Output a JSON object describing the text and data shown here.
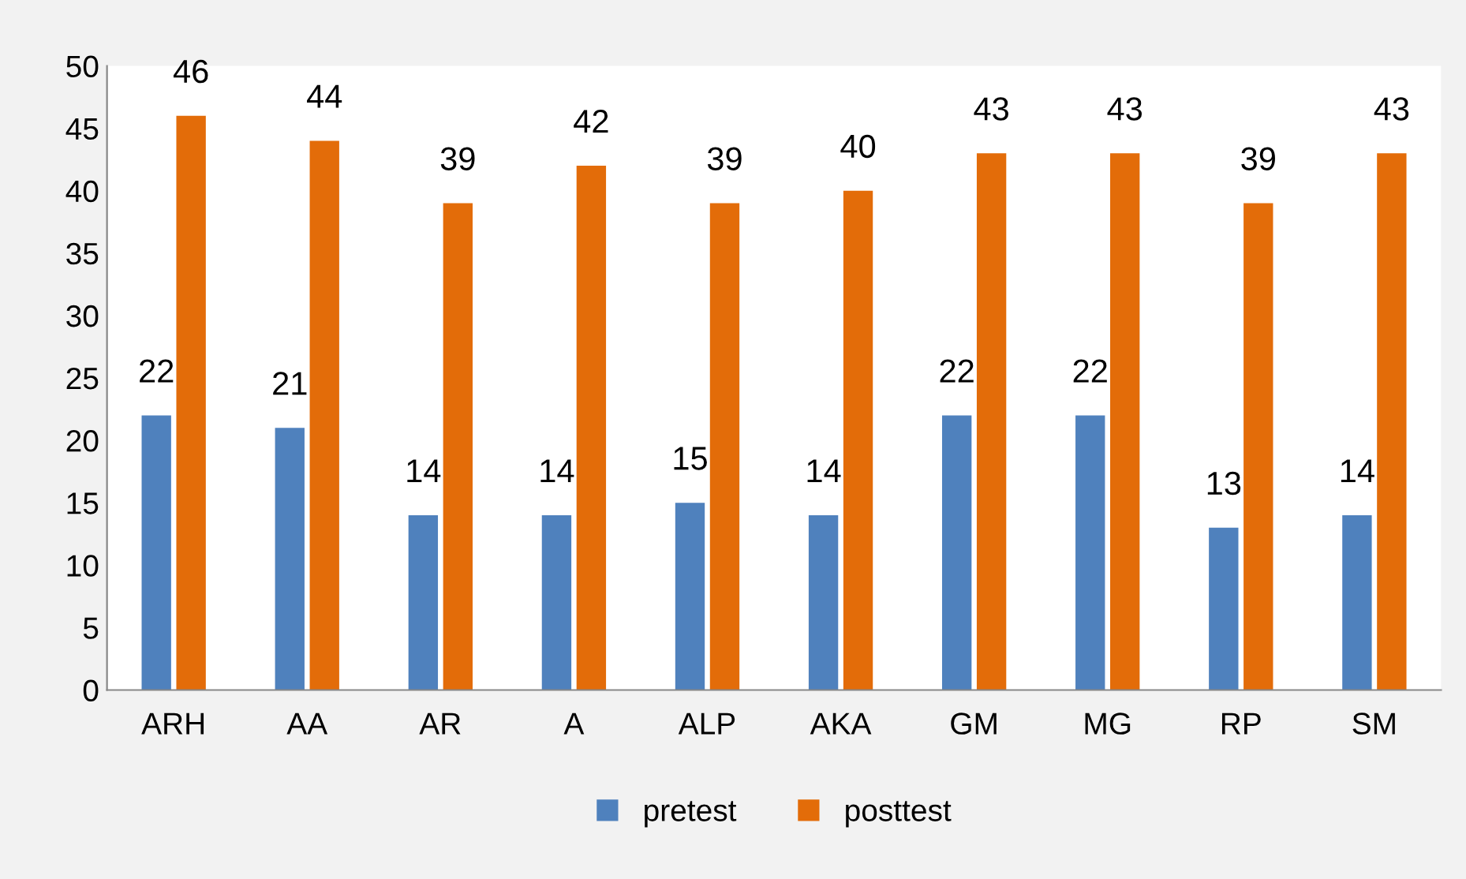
{
  "chart_data": {
    "type": "bar",
    "categories": [
      "ARH",
      "AA",
      "AR",
      "A",
      "ALP",
      "AKA",
      "GM",
      "MG",
      "RP",
      "SM"
    ],
    "series": [
      {
        "name": "pretest",
        "color": "#4f81bd",
        "values": [
          22,
          21,
          14,
          14,
          15,
          14,
          22,
          22,
          13,
          14
        ]
      },
      {
        "name": "posttest",
        "color": "#e36c09",
        "values": [
          46,
          44,
          39,
          42,
          39,
          40,
          43,
          43,
          39,
          43
        ]
      }
    ],
    "ylim": [
      0,
      50
    ],
    "yticks": [
      0,
      5,
      10,
      15,
      20,
      25,
      30,
      35,
      40,
      45,
      50
    ],
    "grid": false,
    "legend": "bottom",
    "data_labels": true
  }
}
